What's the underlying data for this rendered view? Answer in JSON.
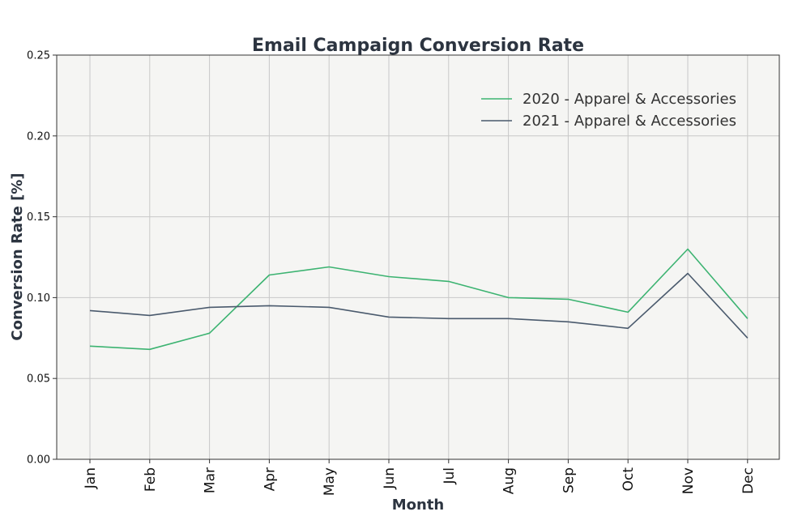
{
  "chart_data": {
    "type": "line",
    "title": "Email Campaign Conversion Rate",
    "xlabel": "Month",
    "ylabel": "Conversion Rate [%]",
    "categories": [
      "Jan",
      "Feb",
      "Mar",
      "Apr",
      "May",
      "Jun",
      "Jul",
      "Aug",
      "Sep",
      "Oct",
      "Nov",
      "Dec"
    ],
    "ylim": [
      0,
      0.25
    ],
    "yticks": [
      "0.00",
      "0.05",
      "0.10",
      "0.15",
      "0.20",
      "0.25"
    ],
    "grid": true,
    "legend_position": "top-right",
    "background": "#f5f5f3",
    "series": [
      {
        "name": "2020 - Apparel & Accessories",
        "color": "#3cb371",
        "values": [
          0.07,
          0.068,
          0.078,
          0.114,
          0.119,
          0.113,
          0.11,
          0.1,
          0.099,
          0.091,
          0.13,
          0.087
        ]
      },
      {
        "name": "2021 - Apparel & Accessories",
        "color": "#4a5a6d",
        "values": [
          0.092,
          0.089,
          0.094,
          0.095,
          0.094,
          0.088,
          0.087,
          0.087,
          0.085,
          0.081,
          0.115,
          0.075
        ]
      }
    ]
  }
}
